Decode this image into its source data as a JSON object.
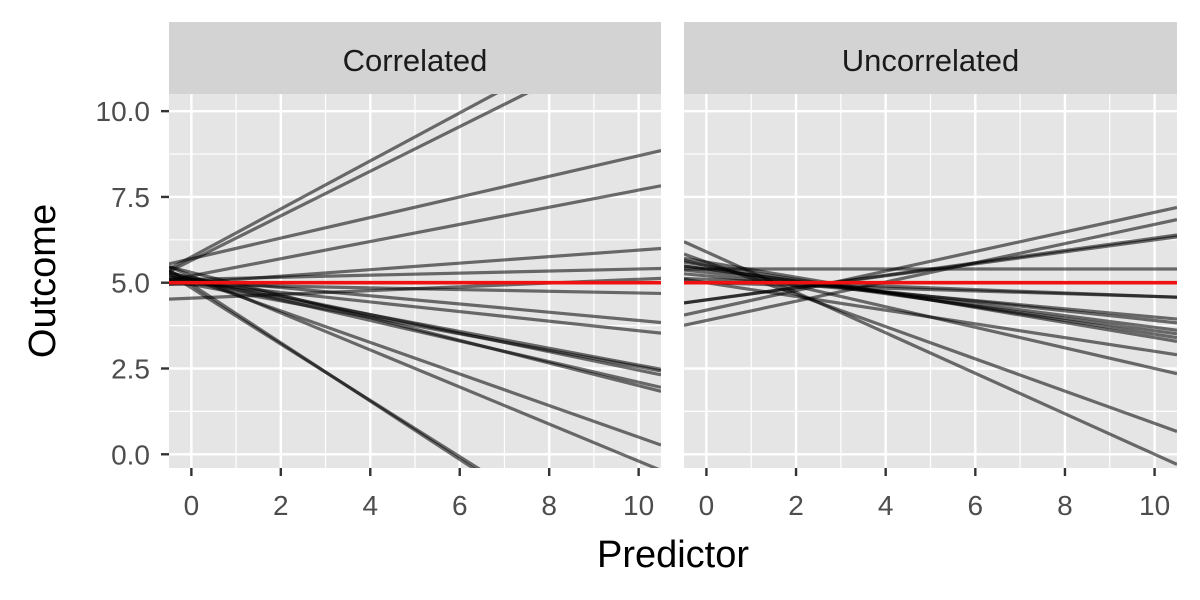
{
  "chart_data": {
    "type": "line",
    "layout": "faceted (2 panels, shared axes)",
    "xlabel": "Predictor",
    "ylabel": "Outcome",
    "xlim": [
      -0.5,
      10.5
    ],
    "ylim": [
      -0.4,
      10.5
    ],
    "x_ticks": [
      0,
      2,
      4,
      6,
      8,
      10
    ],
    "x_tick_labels": [
      "0",
      "2",
      "4",
      "6",
      "8",
      "10"
    ],
    "y_ticks": [
      0,
      2.5,
      5,
      7.5,
      10
    ],
    "y_tick_labels": [
      "0.0",
      "2.5",
      "5.0",
      "7.5",
      "10.0"
    ],
    "grid": true,
    "colors": {
      "panel_background": "#e5e5e5",
      "strip_background": "#d3d3d3",
      "grid": "#ffffff",
      "group_lines": "#000000",
      "group_line_opacity": 0.55,
      "population_line": "#ee1111"
    },
    "panels": [
      {
        "strip_label": "Correlated",
        "population_line": {
          "intercept": 5.0,
          "slope": 0.0
        },
        "group_lines": [
          {
            "intercept": 5.75,
            "slope": 0.7
          },
          {
            "intercept": 5.65,
            "slope": 0.65
          },
          {
            "intercept": 5.7,
            "slope": 0.3
          },
          {
            "intercept": 5.2,
            "slope": 0.25
          },
          {
            "intercept": 5.0,
            "slope": 0.095
          },
          {
            "intercept": 5.1,
            "slope": 0.03
          },
          {
            "intercept": 4.95,
            "slope": -0.025
          },
          {
            "intercept": 5.1,
            "slope": -0.12
          },
          {
            "intercept": 5.0,
            "slope": -0.14
          },
          {
            "intercept": 5.05,
            "slope": -0.245
          },
          {
            "intercept": 4.95,
            "slope": -0.24
          },
          {
            "intercept": 5.15,
            "slope": -0.27
          },
          {
            "intercept": 5.1,
            "slope": -0.3
          },
          {
            "intercept": 5.3,
            "slope": -0.33
          },
          {
            "intercept": 5.1,
            "slope": -0.46
          },
          {
            "intercept": 5.2,
            "slope": -0.54
          },
          {
            "intercept": 4.85,
            "slope": -0.82
          },
          {
            "intercept": 4.95,
            "slope": -0.85
          },
          {
            "intercept": 4.55,
            "slope": 0.055
          }
        ]
      },
      {
        "strip_label": "Uncorrelated",
        "population_line": {
          "intercept": 5.0,
          "slope": 0.0
        },
        "group_lines": [
          {
            "intercept": 4.2,
            "slope": 0.285
          },
          {
            "intercept": 3.9,
            "slope": 0.28
          },
          {
            "intercept": 4.5,
            "slope": 0.175
          },
          {
            "intercept": 4.5,
            "slope": 0.18
          },
          {
            "intercept": 5.4,
            "slope": 0.0
          },
          {
            "intercept": 5.0,
            "slope": -0.04
          },
          {
            "intercept": 5.1,
            "slope": -0.05
          },
          {
            "intercept": 5.2,
            "slope": -0.12
          },
          {
            "intercept": 5.3,
            "slope": -0.14
          },
          {
            "intercept": 5.4,
            "slope": -0.17
          },
          {
            "intercept": 5.4,
            "slope": -0.18
          },
          {
            "intercept": 5.5,
            "slope": -0.2
          },
          {
            "intercept": 5.6,
            "slope": -0.22
          },
          {
            "intercept": 5.5,
            "slope": -0.3
          },
          {
            "intercept": 5.6,
            "slope": -0.47
          },
          {
            "intercept": 5.9,
            "slope": -0.59
          },
          {
            "intercept": 5.0,
            "slope": -0.2
          }
        ]
      }
    ]
  }
}
